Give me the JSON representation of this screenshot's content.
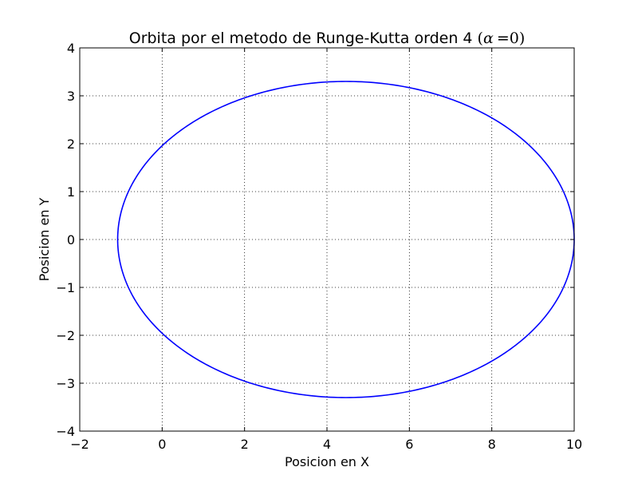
{
  "chart_data": {
    "type": "line",
    "title": "Orbita por el metodo de Runge-Kutta orden 4",
    "title_math": {
      "open": "(",
      "symbol": "α",
      "op": "=",
      "value": "0",
      "close": ")"
    },
    "xlabel": "Posicion en X",
    "ylabel": "Posicion en Y",
    "xlim": [
      -2,
      10
    ],
    "ylim": [
      -4,
      4
    ],
    "xticks": [
      -2,
      0,
      2,
      4,
      6,
      8,
      10
    ],
    "yticks": [
      -4,
      -3,
      -2,
      -1,
      0,
      1,
      2,
      3,
      4
    ],
    "xtick_labels": [
      "−2",
      "0",
      "2",
      "4",
      "6",
      "8",
      "10"
    ],
    "ytick_labels": [
      "−4",
      "−3",
      "−2",
      "−1",
      "0",
      "1",
      "2",
      "3",
      "4"
    ],
    "grid": true,
    "series": [
      {
        "color": "#0000ff",
        "orbit": {
          "center_x": 4.46,
          "center_y": 0,
          "semi_major_x": 5.54,
          "semi_minor_y": 3.3
        }
      }
    ]
  }
}
